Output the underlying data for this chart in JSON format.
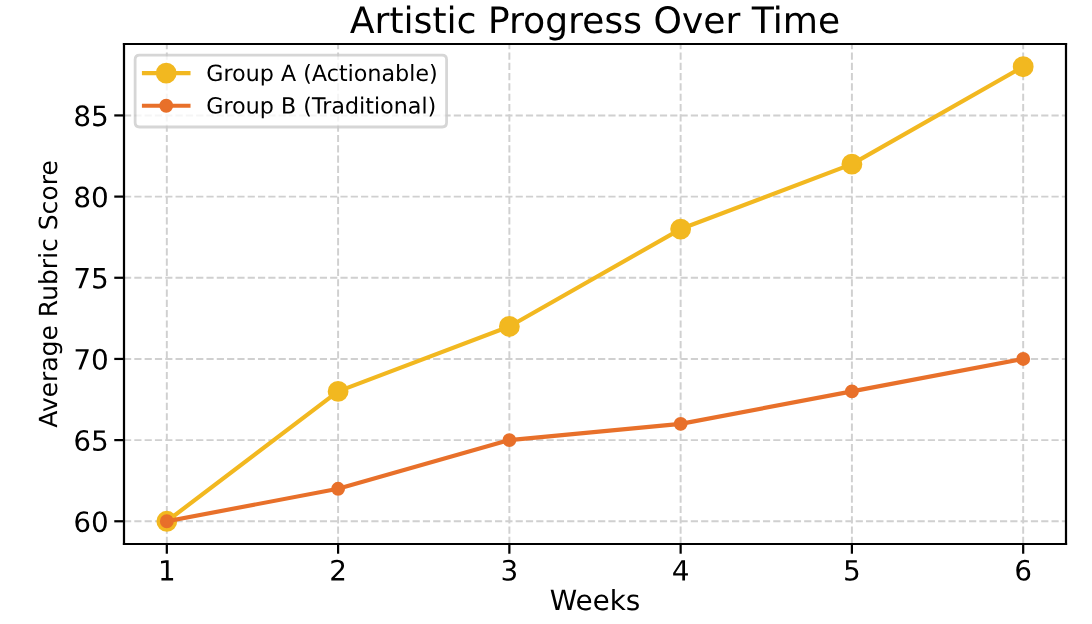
{
  "chart_data": {
    "type": "line",
    "title": "Artistic Progress Over Time",
    "xlabel": "Weeks",
    "ylabel": "Average Rubric Score",
    "x": [
      1,
      2,
      3,
      4,
      5,
      6
    ],
    "series": [
      {
        "name": "Group A (Actionable)",
        "color": "#f2b820",
        "values": [
          60,
          68,
          72,
          78,
          82,
          88
        ]
      },
      {
        "name": "Group B (Traditional)",
        "color": "#e8702a",
        "values": [
          60,
          62,
          65,
          66,
          68,
          70
        ]
      }
    ],
    "xlim": [
      0.75,
      6.25
    ],
    "xticks": [
      1,
      2,
      3,
      4,
      5,
      6
    ],
    "ylim": [
      58.6,
      89.4
    ],
    "yticks": [
      60,
      65,
      70,
      75,
      80,
      85
    ],
    "grid": true,
    "legend": "top left",
    "marker": "circle",
    "line_style": "solid"
  }
}
